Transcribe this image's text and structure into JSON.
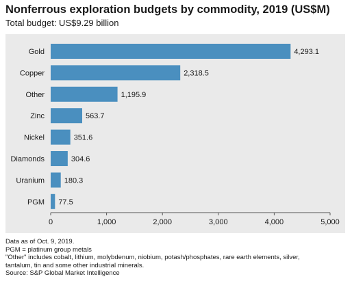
{
  "title": "Nonferrous exploration budgets by commodity, 2019 (US$M)",
  "subtitle": "Total budget: US$9.29 billion",
  "notes": [
    "Data as of Oct. 9, 2019.",
    "PGM = platinum group metals",
    "\"Other\" includes cobalt, lithium, molybdenum, niobium, potash/phosphates, rare earth elements, silver,",
    "tantalum, tin and some other industrial minerals.",
    "Source: S&P Global Market Intelligence"
  ],
  "colors": {
    "bar": "#4a8fbf",
    "panel": "#eaeaea",
    "axis": "#555555",
    "text": "#1a1a1a"
  },
  "chart_data": {
    "type": "bar",
    "orientation": "horizontal",
    "title": "Nonferrous exploration budgets by commodity, 2019 (US$M)",
    "subtitle": "Total budget: US$9.29 billion",
    "categories": [
      "Gold",
      "Copper",
      "Other",
      "Zinc",
      "Nickel",
      "Diamonds",
      "Uranium",
      "PGM"
    ],
    "values": [
      4293.1,
      2318.5,
      1195.9,
      563.7,
      351.6,
      304.6,
      180.3,
      77.5
    ],
    "value_labels": [
      "4,293.1",
      "2,318.5",
      "1,195.9",
      "563.7",
      "351.6",
      "304.6",
      "180.3",
      "77.5"
    ],
    "xlim": [
      0,
      5000
    ],
    "xticks": [
      0,
      1000,
      2000,
      3000,
      4000,
      5000
    ],
    "xtick_labels": [
      "0",
      "1,000",
      "2,000",
      "3,000",
      "4,000",
      "5,000"
    ],
    "xlabel": "",
    "ylabel": "",
    "grid": false,
    "legend": "none"
  }
}
